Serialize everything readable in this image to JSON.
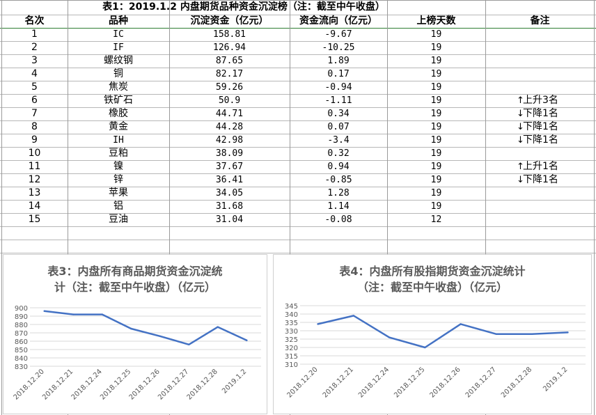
{
  "table": {
    "title": "表1：2019.1.2 内盘期货品种资金沉淀榜（注：截至中午收盘）",
    "headers": [
      "名次",
      "品种",
      "沉淀资金（亿元）",
      "资金流向（亿元）",
      "上榜天数",
      "备注"
    ],
    "rows": [
      {
        "rank": "1",
        "name": "IC",
        "funds": "158.81",
        "flow": "-9.67",
        "days": "19",
        "note": "",
        "dir": ""
      },
      {
        "rank": "2",
        "name": "IF",
        "funds": "126.94",
        "flow": "-10.25",
        "days": "19",
        "note": "",
        "dir": ""
      },
      {
        "rank": "3",
        "name": "螺纹钢",
        "funds": "87.65",
        "flow": "1.89",
        "days": "19",
        "note": "",
        "dir": ""
      },
      {
        "rank": "4",
        "name": "铜",
        "funds": "82.17",
        "flow": "0.17",
        "days": "19",
        "note": "",
        "dir": ""
      },
      {
        "rank": "5",
        "name": "焦炭",
        "funds": "59.26",
        "flow": "-0.94",
        "days": "19",
        "note": "",
        "dir": ""
      },
      {
        "rank": "6",
        "name": "铁矿石",
        "funds": "50.9",
        "flow": "-1.11",
        "days": "19",
        "note": "上升3名",
        "dir": "up"
      },
      {
        "rank": "7",
        "name": "橡胶",
        "funds": "44.71",
        "flow": "0.34",
        "days": "19",
        "note": "下降1名",
        "dir": "down"
      },
      {
        "rank": "8",
        "name": "黄金",
        "funds": "44.28",
        "flow": "0.07",
        "days": "19",
        "note": "下降1名",
        "dir": "down"
      },
      {
        "rank": "9",
        "name": "IH",
        "funds": "42.98",
        "flow": "-3.4",
        "days": "19",
        "note": "下降1名",
        "dir": "down"
      },
      {
        "rank": "10",
        "name": "豆粕",
        "funds": "38.09",
        "flow": "0.32",
        "days": "19",
        "note": "",
        "dir": ""
      },
      {
        "rank": "11",
        "name": "镍",
        "funds": "37.67",
        "flow": "0.94",
        "days": "19",
        "note": "上升1名",
        "dir": "up"
      },
      {
        "rank": "12",
        "name": "锌",
        "funds": "36.41",
        "flow": "-0.85",
        "days": "19",
        "note": "下降1名",
        "dir": "down"
      },
      {
        "rank": "13",
        "name": "苹果",
        "funds": "34.05",
        "flow": "1.28",
        "days": "19",
        "note": "",
        "dir": ""
      },
      {
        "rank": "14",
        "name": "铝",
        "funds": "31.68",
        "flow": "1.14",
        "days": "19",
        "note": "",
        "dir": ""
      },
      {
        "rank": "15",
        "name": "豆油",
        "funds": "31.04",
        "flow": "-0.08",
        "days": "12",
        "note": "",
        "dir": ""
      }
    ]
  },
  "colors": {
    "line": "#4472c4",
    "grid": "#d9d9d9",
    "axis_text": "#595959",
    "title_text": "#595959"
  },
  "chart_data": [
    {
      "type": "line",
      "title_lines": [
        "表3：内盘所有商品期货资金沉淀统",
        "计（注：截至中午收盘）（亿元）"
      ],
      "categories": [
        "2018.12.20",
        "2018.12.21",
        "2018.12.24",
        "2018.12.25",
        "2018.12.26",
        "2018.12.27",
        "2018.12.28",
        "2019.1.2"
      ],
      "values": [
        896,
        892,
        892,
        875,
        866,
        856,
        877,
        861
      ],
      "yticks": [
        830,
        840,
        850,
        860,
        870,
        880,
        890,
        900
      ],
      "ylim": [
        830,
        900
      ],
      "grid": true
    },
    {
      "type": "line",
      "title_lines": [
        "表4：内盘所有股指期货资金沉淀统计",
        "（注：截至中午收盘）（亿元）"
      ],
      "categories": [
        "2018.12.20",
        "2018.12.21",
        "2018.12.24",
        "2018.12.25",
        "2018.12.26",
        "2018.12.27",
        "2018.12.28",
        "2019.1.2"
      ],
      "values": [
        334,
        339,
        326,
        320,
        334,
        328,
        328,
        329
      ],
      "yticks": [
        310,
        315,
        320,
        325,
        330,
        335,
        340,
        345
      ],
      "ylim": [
        310,
        345
      ],
      "grid": true
    }
  ]
}
